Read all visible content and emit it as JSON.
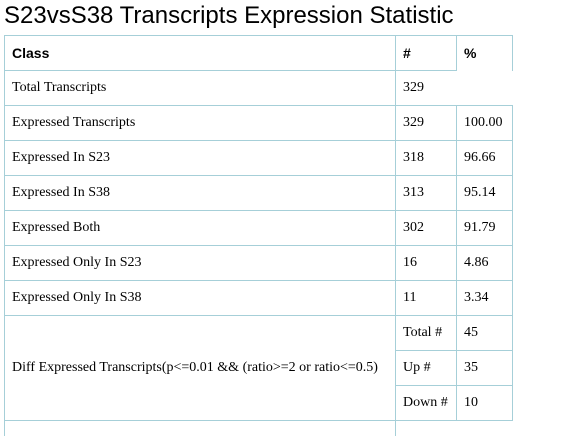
{
  "title": "S23vsS38 Transcripts Expression Statistic",
  "table": {
    "headers": [
      "Class",
      "#",
      "%"
    ],
    "rows": [
      {
        "class": "Total Transcripts",
        "count": "329",
        "percent": ""
      },
      {
        "class": "Expressed Transcripts",
        "count": "329",
        "percent": "100.00"
      },
      {
        "class": "Expressed In S23",
        "count": "318",
        "percent": "96.66"
      },
      {
        "class": "Expressed In S38",
        "count": "313",
        "percent": "95.14"
      },
      {
        "class": "Expressed Both",
        "count": "302",
        "percent": "91.79"
      },
      {
        "class": "Expressed Only In S23",
        "count": "16",
        "percent": "4.86"
      },
      {
        "class": "Expressed Only In S38",
        "count": "11",
        "percent": "3.34"
      }
    ],
    "diff": {
      "label": "Diff Expressed Transcripts(p<=0.01 && (ratio>=2 or ratio<=0.5)",
      "rows": [
        {
          "label": "Total #",
          "value": "45"
        },
        {
          "label": "Up #",
          "value": "35"
        },
        {
          "label": "Down #",
          "value": "10"
        }
      ]
    }
  }
}
